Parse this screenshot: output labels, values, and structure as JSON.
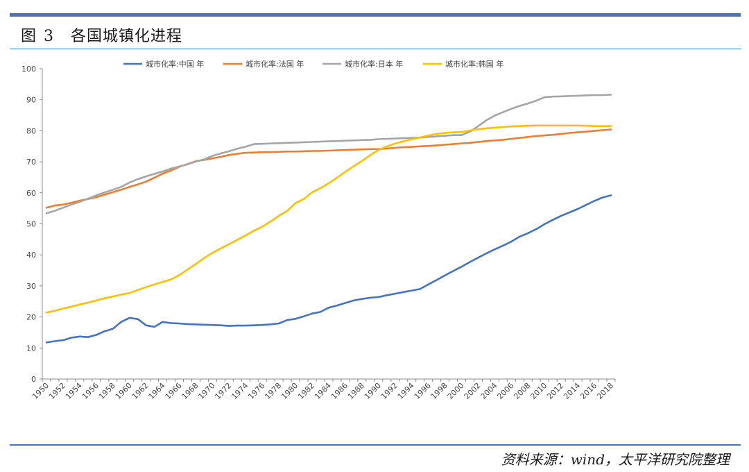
{
  "header": {
    "figure_label": "图",
    "figure_number": "3",
    "title": "各国城镇化进程"
  },
  "footer": {
    "source": "资料来源：wind，太平洋研究院整理"
  },
  "colors": {
    "accent_rule": "#4472c4",
    "china": "#4472c4",
    "france": "#ed7d31",
    "japan": "#a5a5a5",
    "korea": "#ffc000"
  },
  "chart_data": {
    "type": "line",
    "title": "",
    "xlabel": "",
    "ylabel": "",
    "ylim": [
      0,
      100
    ],
    "yticks": [
      0,
      10,
      20,
      30,
      40,
      50,
      60,
      70,
      80,
      90,
      100
    ],
    "x_tick_labels": [
      "1950",
      "1952",
      "1954",
      "1956",
      "1958",
      "1960",
      "1962",
      "1964",
      "1966",
      "1968",
      "1970",
      "1972",
      "1974",
      "1976",
      "1978",
      "1980",
      "1982",
      "1984",
      "1986",
      "1988",
      "1990",
      "1992",
      "1994",
      "1996",
      "1998",
      "2000",
      "2002",
      "2004",
      "2006",
      "2008",
      "2010",
      "2012",
      "2014",
      "2016",
      "2018"
    ],
    "x_years": [
      1950,
      1951,
      1952,
      1953,
      1954,
      1955,
      1956,
      1957,
      1958,
      1959,
      1960,
      1961,
      1962,
      1963,
      1964,
      1965,
      1966,
      1967,
      1968,
      1969,
      1970,
      1971,
      1972,
      1973,
      1974,
      1975,
      1976,
      1977,
      1978,
      1979,
      1980,
      1981,
      1982,
      1983,
      1984,
      1985,
      1986,
      1987,
      1988,
      1989,
      1990,
      1991,
      1992,
      1993,
      1994,
      1995,
      1996,
      1997,
      1998,
      1999,
      2000,
      2001,
      2002,
      2003,
      2004,
      2005,
      2006,
      2007,
      2008,
      2009,
      2010,
      2011,
      2012,
      2013,
      2014,
      2015,
      2016,
      2017,
      2018
    ],
    "grid": false,
    "legend_position": "top",
    "series": [
      {
        "name": "城市化率:中国 年",
        "color": "#4472c4",
        "values": [
          11.8,
          12.2,
          12.5,
          13.3,
          13.7,
          13.5,
          14.2,
          15.4,
          16.2,
          18.4,
          19.7,
          19.3,
          17.3,
          16.8,
          18.4,
          18.0,
          17.9,
          17.7,
          17.6,
          17.5,
          17.4,
          17.3,
          17.1,
          17.2,
          17.2,
          17.3,
          17.4,
          17.6,
          17.9,
          19.0,
          19.4,
          20.2,
          21.1,
          21.6,
          23.0,
          23.7,
          24.5,
          25.3,
          25.8,
          26.2,
          26.4,
          27.0,
          27.5,
          28.0,
          28.5,
          29.0,
          30.5,
          31.9,
          33.4,
          34.8,
          36.2,
          37.7,
          39.1,
          40.5,
          41.8,
          43.0,
          44.3,
          45.9,
          47.0,
          48.3,
          49.9,
          51.3,
          52.6,
          53.7,
          54.8,
          56.1,
          57.4,
          58.5,
          59.2
        ]
      },
      {
        "name": "城市化率:法国 年",
        "color": "#ed7d31",
        "values": [
          55.2,
          55.9,
          56.2,
          56.8,
          57.5,
          58.0,
          58.6,
          59.4,
          60.2,
          61.0,
          61.9,
          62.7,
          63.6,
          64.9,
          66.2,
          67.2,
          68.4,
          69.3,
          70.2,
          70.6,
          71.1,
          71.6,
          72.2,
          72.6,
          72.9,
          73.0,
          73.1,
          73.1,
          73.2,
          73.3,
          73.3,
          73.4,
          73.5,
          73.5,
          73.6,
          73.7,
          73.8,
          73.9,
          74.0,
          74.1,
          74.1,
          74.3,
          74.5,
          74.7,
          74.8,
          75.0,
          75.1,
          75.3,
          75.5,
          75.7,
          75.9,
          76.1,
          76.4,
          76.7,
          76.9,
          77.1,
          77.4,
          77.7,
          78.0,
          78.3,
          78.5,
          78.7,
          79.0,
          79.3,
          79.5,
          79.7,
          80.0,
          80.2,
          80.4
        ]
      },
      {
        "name": "城市化率:日本 年",
        "color": "#a5a5a5",
        "values": [
          53.4,
          54.2,
          55.2,
          56.2,
          57.1,
          58.1,
          59.2,
          60.1,
          61.0,
          61.9,
          63.3,
          64.4,
          65.3,
          66.1,
          66.9,
          67.8,
          68.5,
          69.2,
          70.1,
          70.8,
          71.9,
          72.7,
          73.4,
          74.2,
          74.9,
          75.7,
          75.8,
          75.9,
          76.0,
          76.1,
          76.2,
          76.3,
          76.4,
          76.5,
          76.6,
          76.7,
          76.8,
          76.9,
          77.0,
          77.1,
          77.3,
          77.4,
          77.5,
          77.6,
          77.7,
          77.8,
          78.0,
          78.2,
          78.4,
          78.6,
          78.6,
          79.7,
          81.5,
          83.4,
          84.9,
          86.0,
          87.1,
          88.0,
          88.8,
          89.7,
          90.8,
          91.0,
          91.1,
          91.2,
          91.3,
          91.4,
          91.5,
          91.5,
          91.6
        ]
      },
      {
        "name": "城市化率:韩国 年",
        "color": "#ffc000",
        "values": [
          21.4,
          22.0,
          22.7,
          23.3,
          24.0,
          24.6,
          25.3,
          26.0,
          26.6,
          27.2,
          27.7,
          28.7,
          29.6,
          30.5,
          31.3,
          32.1,
          33.5,
          35.3,
          37.1,
          39.0,
          40.7,
          42.1,
          43.5,
          44.9,
          46.3,
          47.8,
          49.1,
          50.8,
          52.6,
          54.2,
          56.7,
          58.0,
          60.2,
          61.5,
          63.1,
          64.9,
          66.8,
          68.6,
          70.3,
          72.2,
          73.8,
          75.0,
          75.9,
          76.6,
          77.3,
          77.8,
          78.5,
          79.0,
          79.3,
          79.5,
          79.6,
          80.1,
          80.5,
          80.8,
          81.0,
          81.2,
          81.4,
          81.5,
          81.6,
          81.7,
          81.7,
          81.7,
          81.7,
          81.7,
          81.7,
          81.6,
          81.5,
          81.5,
          81.5
        ]
      }
    ]
  }
}
